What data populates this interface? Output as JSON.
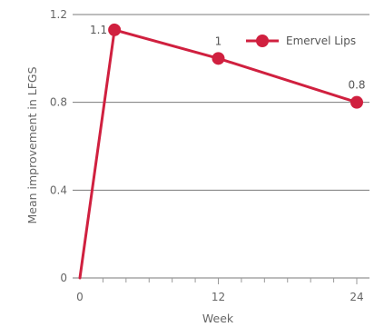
{
  "chart_data": {
    "type": "line",
    "xlabel": "Week",
    "ylabel": "Mean improvement in LFGS",
    "xlim": [
      0,
      24
    ],
    "ylim": [
      0,
      1.2
    ],
    "xticks": [
      "0",
      "12",
      "24"
    ],
    "yticks": [
      "0",
      "0.4",
      "0.8",
      "1.2"
    ],
    "grid": true,
    "legend_position": "top-right",
    "series": [
      {
        "name": "Emervel Lips",
        "color": "#d0203f",
        "points": [
          {
            "x": 0,
            "y": 0,
            "marker": false,
            "label": ""
          },
          {
            "x": 3,
            "y": 1.13,
            "marker": true,
            "label": "1.1"
          },
          {
            "x": 12,
            "y": 1.0,
            "marker": true,
            "label": "1"
          },
          {
            "x": 24,
            "y": 0.8,
            "marker": true,
            "label": "0.8"
          }
        ]
      }
    ]
  }
}
